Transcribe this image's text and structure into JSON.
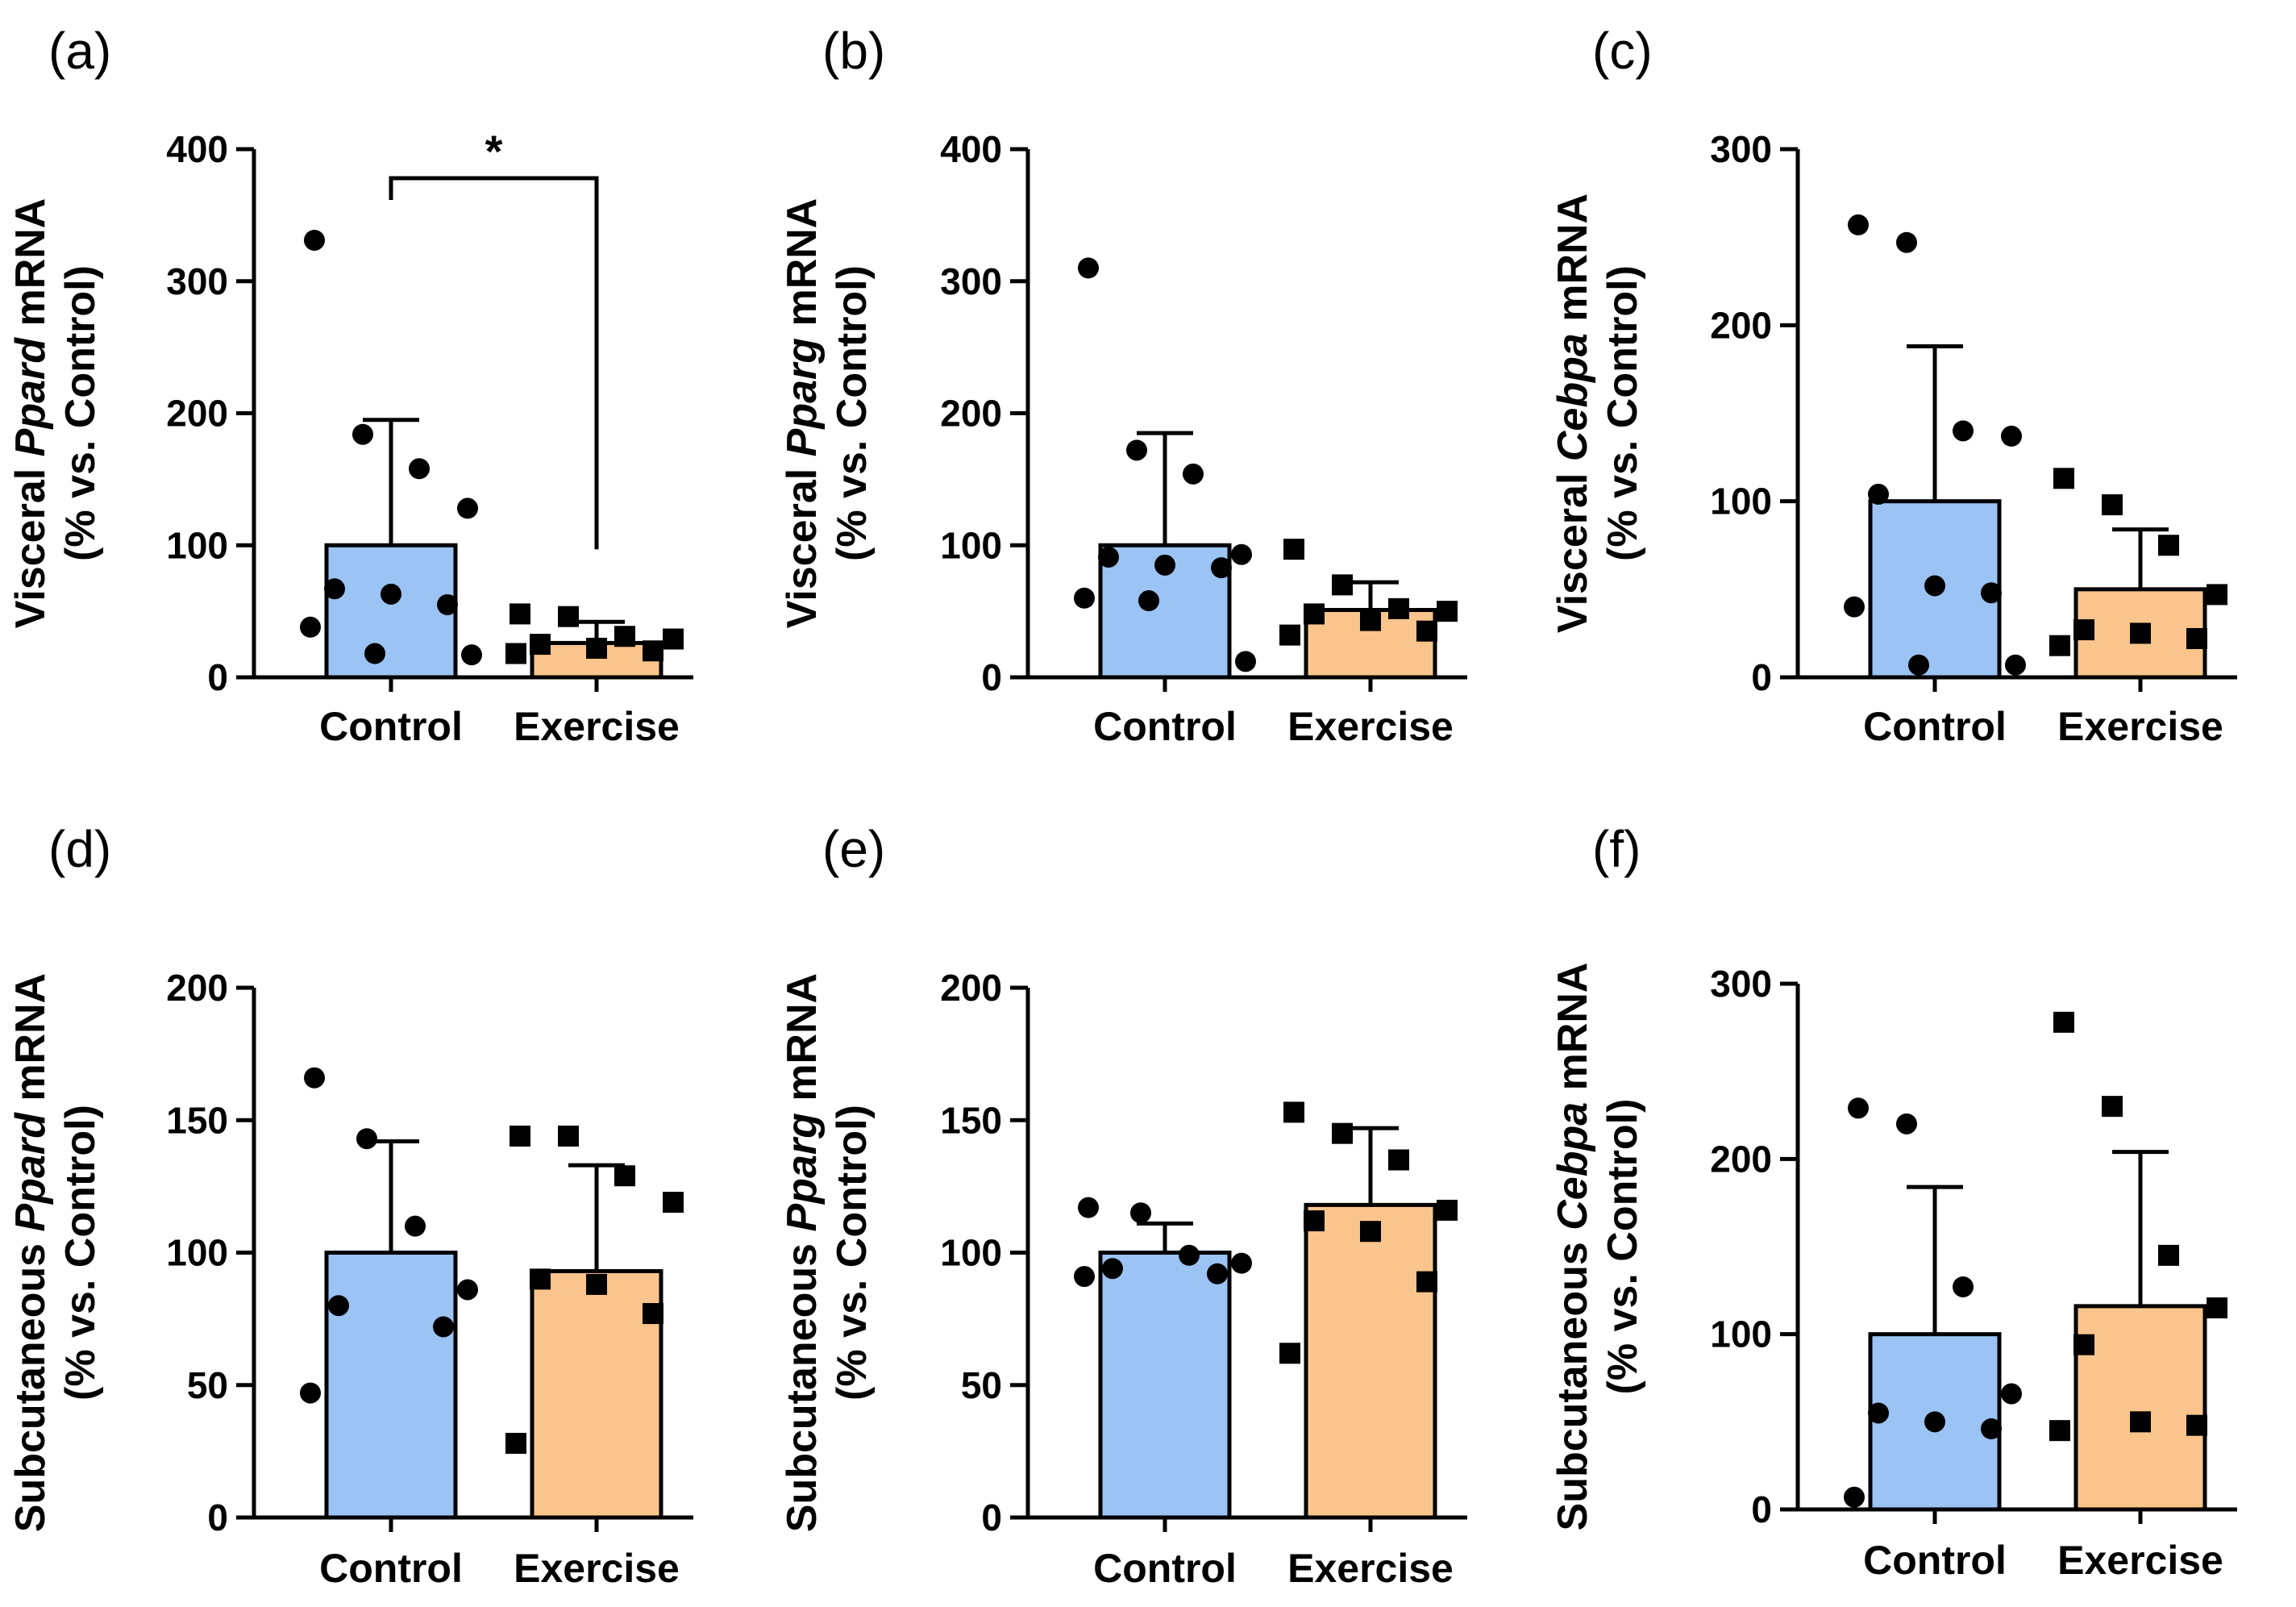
{
  "colors": {
    "control": "#9bc3f3",
    "exercise": "#f9c58d",
    "ink": "#000000"
  },
  "chart_data": [
    {
      "type": "bar",
      "panel": "(a)",
      "ylabel_pre": "Visceral ",
      "ylabel_gene": "Ppard",
      "ylabel_post": " mRNA",
      "ylabel_line2": "(% vs. Control)",
      "categories": [
        "Control",
        "Exercise"
      ],
      "values": [
        100,
        26
      ],
      "errors": [
        95,
        16
      ],
      "ylim": [
        0,
        400
      ],
      "yticks": [
        "0",
        "100",
        "200",
        "300",
        "400"
      ],
      "points": [
        [
          331,
          184,
          158,
          128,
          67,
          63,
          55,
          38,
          18,
          17
        ],
        [
          48,
          46,
          31,
          29,
          25,
          22,
          20,
          18
        ]
      ],
      "significance": {
        "label": "*",
        "pair": [
          0,
          1
        ],
        "level": 378
      }
    },
    {
      "type": "bar",
      "panel": "(b)",
      "ylabel_pre": "Visceral ",
      "ylabel_gene": "Pparg",
      "ylabel_post": " mRNA",
      "ylabel_line2": "(% vs. Control)",
      "categories": [
        "Control",
        "Exercise"
      ],
      "values": [
        100,
        51
      ],
      "errors": [
        85,
        21
      ],
      "ylim": [
        0,
        400
      ],
      "yticks": [
        "0",
        "100",
        "200",
        "300",
        "400"
      ],
      "points": [
        [
          310,
          172,
          154,
          93,
          91,
          85,
          83,
          60,
          58,
          12
        ],
        [
          97,
          70,
          52,
          50,
          48,
          43,
          35,
          32
        ]
      ]
    },
    {
      "type": "bar",
      "panel": "(c)",
      "ylabel_pre": "Visceral ",
      "ylabel_gene": "Cebpa",
      "ylabel_post": " mRNA",
      "ylabel_line2": "(% vs. Control)",
      "categories": [
        "Control",
        "Exercise"
      ],
      "values": [
        100,
        50
      ],
      "errors": [
        88,
        34
      ],
      "ylim": [
        0,
        300
      ],
      "yticks": [
        "0",
        "100",
        "200",
        "300"
      ],
      "points": [
        [
          257,
          247,
          140,
          137,
          104,
          52,
          48,
          40,
          7,
          7
        ],
        [
          113,
          98,
          75,
          47,
          27,
          25,
          22,
          18
        ]
      ]
    },
    {
      "type": "bar",
      "panel": "(d)",
      "ylabel_pre": "Subcutaneous ",
      "ylabel_gene": "Ppard",
      "ylabel_post": " mRNA",
      "ylabel_line2": "(% vs. Control)",
      "categories": [
        "Control",
        "Exercise"
      ],
      "values": [
        100,
        93
      ],
      "errors": [
        42,
        40
      ],
      "ylim": [
        0,
        200
      ],
      "yticks": [
        "0",
        "50",
        "100",
        "150",
        "200"
      ],
      "points": [
        [
          166,
          143,
          110,
          86,
          80,
          72,
          47
        ],
        [
          144,
          144,
          129,
          119,
          90,
          88,
          77,
          28
        ]
      ]
    },
    {
      "type": "bar",
      "panel": "(e)",
      "ylabel_pre": "Subcutaneous ",
      "ylabel_gene": "Pparg",
      "ylabel_post": " mRNA",
      "ylabel_line2": "(% vs. Control)",
      "categories": [
        "Control",
        "Exercise"
      ],
      "values": [
        100,
        118
      ],
      "errors": [
        11,
        29
      ],
      "ylim": [
        0,
        200
      ],
      "yticks": [
        "0",
        "50",
        "100",
        "150",
        "200"
      ],
      "points": [
        [
          117,
          115,
          99,
          96,
          94,
          92,
          91
        ],
        [
          153,
          145,
          135,
          116,
          112,
          108,
          89,
          62
        ]
      ]
    },
    {
      "type": "bar",
      "panel": "(f)",
      "ylabel_pre": "Subcutaneous ",
      "ylabel_gene": "Cebpa",
      "ylabel_post": " mRNA",
      "ylabel_line2": "(% vs. Control)",
      "categories": [
        "Control",
        "Exercise"
      ],
      "values": [
        100,
        116
      ],
      "errors": [
        84,
        88
      ],
      "ylim": [
        0,
        300
      ],
      "yticks": [
        "0",
        "100",
        "200",
        "300"
      ],
      "points": [
        [
          229,
          220,
          127,
          66,
          55,
          50,
          46,
          7
        ],
        [
          278,
          230,
          145,
          115,
          94,
          50,
          48,
          45
        ]
      ]
    }
  ]
}
